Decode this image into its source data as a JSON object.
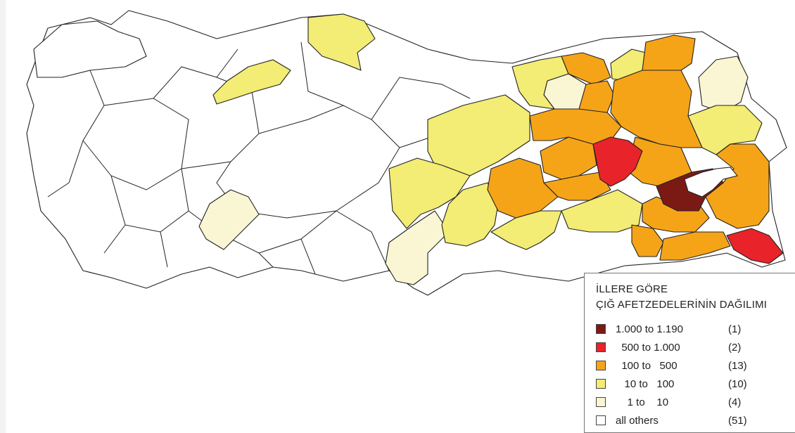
{
  "legend": {
    "title_line1": "İLLERE GÖRE",
    "title_line2": "ÇIĞ AFETZEDELERİNİN DAĞILIMI",
    "classes": [
      {
        "range": "1.000 to 1.190",
        "count": "(1)",
        "color": "#7b1a15"
      },
      {
        "range": "  500 to 1.000",
        "count": "(2)",
        "color": "#e8232a"
      },
      {
        "range": "  100 to   500",
        "count": "(13)",
        "color": "#f5a418"
      },
      {
        "range": "   10 to   100",
        "count": "(10)",
        "color": "#f3ec75"
      },
      {
        "range": "    1 to    10",
        "count": "(4)",
        "color": "#faf6d4"
      },
      {
        "range": "all others",
        "count": "(51)",
        "color": "#ffffff"
      }
    ]
  },
  "map": {
    "type": "choropleth",
    "region": "Turkey provinces",
    "highlighted_provinces": [
      {
        "class": "1.000 to 1.190",
        "color": "#7b1a15"
      },
      {
        "class": "500 to 1.000",
        "color": "#e8232a"
      },
      {
        "class": "500 to 1.000",
        "color": "#e8232a"
      },
      {
        "class": "100 to 500",
        "color": "#f5a418"
      },
      {
        "class": "100 to 500",
        "color": "#f5a418"
      },
      {
        "class": "100 to 500",
        "color": "#f5a418"
      },
      {
        "class": "100 to 500",
        "color": "#f5a418"
      },
      {
        "class": "100 to 500",
        "color": "#f5a418"
      },
      {
        "class": "100 to 500",
        "color": "#f5a418"
      },
      {
        "class": "100 to 500",
        "color": "#f5a418"
      },
      {
        "class": "100 to 500",
        "color": "#f5a418"
      },
      {
        "class": "100 to 500",
        "color": "#f5a418"
      },
      {
        "class": "100 to 500",
        "color": "#f5a418"
      },
      {
        "class": "100 to 500",
        "color": "#f5a418"
      },
      {
        "class": "100 to 500",
        "color": "#f5a418"
      },
      {
        "class": "100 to 500",
        "color": "#f5a418"
      },
      {
        "class": "10 to 100",
        "color": "#f3ec75"
      },
      {
        "class": "10 to 100",
        "color": "#f3ec75"
      },
      {
        "class": "10 to 100",
        "color": "#f3ec75"
      },
      {
        "class": "10 to 100",
        "color": "#f3ec75"
      },
      {
        "class": "10 to 100",
        "color": "#f3ec75"
      },
      {
        "class": "10 to 100",
        "color": "#f3ec75"
      },
      {
        "class": "10 to 100",
        "color": "#f3ec75"
      },
      {
        "class": "10 to 100",
        "color": "#f3ec75"
      },
      {
        "class": "10 to 100",
        "color": "#f3ec75"
      },
      {
        "class": "10 to 100",
        "color": "#f3ec75"
      },
      {
        "class": "1 to 10",
        "color": "#faf6d4"
      },
      {
        "class": "1 to 10",
        "color": "#faf6d4"
      },
      {
        "class": "1 to 10",
        "color": "#faf6d4"
      },
      {
        "class": "1 to 10",
        "color": "#faf6d4"
      }
    ],
    "other_color": "#ffffff",
    "lake_color": "#ffffff"
  }
}
